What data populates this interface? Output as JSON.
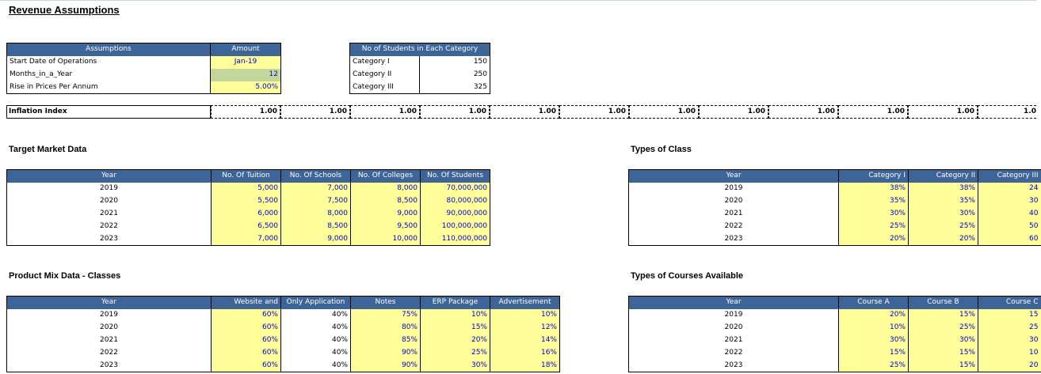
{
  "title": "Revenue Assumptions",
  "assumptions": {
    "headers": [
      "Assumptions",
      "Amount"
    ],
    "rows": [
      {
        "label": "Start Date of Operations",
        "value": "Jan-19"
      },
      {
        "label": "Months_in_a_Year",
        "value": "12"
      },
      {
        "label": "Rise in Prices Per Annum",
        "value": "5.00%"
      }
    ]
  },
  "students": {
    "header": "No of Students in Each Category",
    "rows": [
      {
        "label": "Category I",
        "value": "150"
      },
      {
        "label": "Category II",
        "value": "250"
      },
      {
        "label": "Category III",
        "value": "325"
      }
    ]
  },
  "inflation": {
    "label": "Inflation Index",
    "values": [
      "1.00",
      "1.00",
      "1.00",
      "1.00",
      "1.00",
      "1.00",
      "1.00",
      "1.00",
      "1.00",
      "1.00",
      "1.00",
      "1.0"
    ]
  },
  "target_market": {
    "title": "Target Market Data",
    "headers": [
      "Year",
      "No. Of Tuition",
      "No. Of Schools",
      "No. Of Colleges",
      "No. Of Students"
    ],
    "rows": [
      [
        "2019",
        "5,000",
        "7,000",
        "8,000",
        "70,000,000"
      ],
      [
        "2020",
        "5,500",
        "7,500",
        "8,500",
        "80,000,000"
      ],
      [
        "2021",
        "6,000",
        "8,000",
        "9,000",
        "90,000,000"
      ],
      [
        "2022",
        "6,500",
        "8,500",
        "9,500",
        "100,000,000"
      ],
      [
        "2023",
        "7,000",
        "9,000",
        "10,000",
        "110,000,000"
      ]
    ]
  },
  "types_of_class": {
    "title": "Types of Class",
    "headers": [
      "Year",
      "Category I",
      "Category II",
      "Category III"
    ],
    "rows": [
      [
        "2019",
        "38%",
        "38%",
        "24"
      ],
      [
        "2020",
        "35%",
        "35%",
        "30"
      ],
      [
        "2021",
        "30%",
        "30%",
        "40"
      ],
      [
        "2022",
        "25%",
        "25%",
        "50"
      ],
      [
        "2023",
        "20%",
        "20%",
        "60"
      ]
    ]
  },
  "product_mix": {
    "title": "Product Mix Data - Classes",
    "headers": [
      "Year",
      "Website and",
      "Only Application",
      "Notes",
      "ERP Package",
      "Advertisement"
    ],
    "rows": [
      [
        "2019",
        "60%",
        "40%",
        "75%",
        "10%",
        "10%"
      ],
      [
        "2020",
        "60%",
        "40%",
        "80%",
        "15%",
        "12%"
      ],
      [
        "2021",
        "60%",
        "40%",
        "85%",
        "20%",
        "14%"
      ],
      [
        "2022",
        "60%",
        "40%",
        "90%",
        "25%",
        "16%"
      ],
      [
        "2023",
        "60%",
        "40%",
        "90%",
        "30%",
        "18%"
      ]
    ]
  },
  "courses": {
    "title": "Types of Courses Available",
    "headers": [
      "Year",
      "Course A",
      "Course B",
      "Course C"
    ],
    "rows": [
      [
        "2019",
        "20%",
        "15%",
        "15"
      ],
      [
        "2020",
        "10%",
        "25%",
        "25"
      ],
      [
        "2021",
        "30%",
        "30%",
        "30"
      ],
      [
        "2022",
        "15%",
        "15%",
        "10"
      ],
      [
        "2023",
        "25%",
        "15%",
        "20"
      ]
    ]
  },
  "colors": {
    "header_blue": "#3d6597",
    "input_yellow": "#ffff99",
    "input_green": "#c4d79b",
    "value_blue": "#0000cc"
  }
}
